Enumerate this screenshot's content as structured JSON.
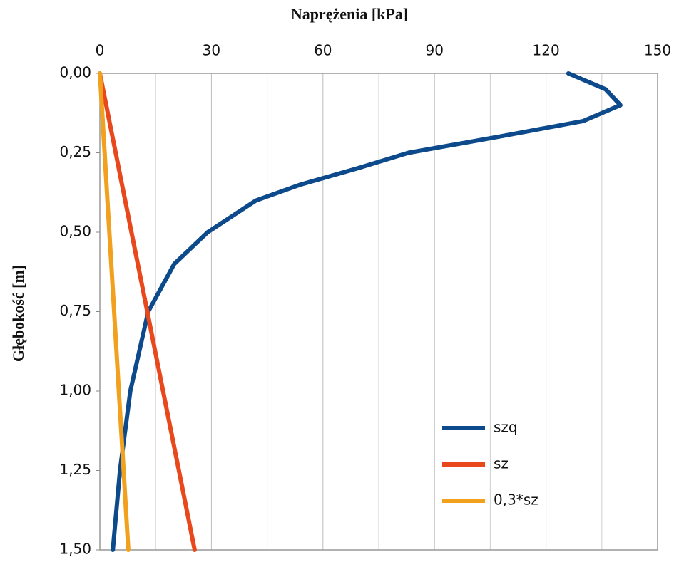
{
  "chart_data": {
    "type": "line",
    "title": "Naprężenia [kPa]",
    "y_label": "Głębokość [m]",
    "x": [
      0,
      0.05,
      0.1,
      0.15,
      0.2,
      0.25,
      0.3,
      0.35,
      0.4,
      0.5,
      0.6,
      0.75,
      1.0,
      1.25,
      1.5
    ],
    "series": [
      {
        "name": "szq",
        "color": "#0d4a8c",
        "values": [
          126,
          136,
          140,
          130,
          107,
          83,
          69,
          54,
          42,
          29,
          20,
          13,
          8.2,
          5.4,
          3.5
        ]
      },
      {
        "name": "sz",
        "color": "#e8481c",
        "values": [
          0,
          0.85,
          1.7,
          2.55,
          3.4,
          4.25,
          5.1,
          5.95,
          6.8,
          8.5,
          10.2,
          12.75,
          17,
          21.25,
          25.5
        ]
      },
      {
        "name": "0,3*sz",
        "color": "#f2a11e",
        "values": [
          0,
          0.26,
          0.51,
          0.77,
          1.02,
          1.28,
          1.53,
          1.79,
          2.04,
          2.55,
          3.06,
          3.83,
          5.1,
          6.38,
          7.65
        ]
      }
    ],
    "vlim": [
      0,
      150
    ],
    "vticks": [
      0,
      30,
      60,
      90,
      120,
      150
    ],
    "vminor": [
      15,
      45,
      75,
      105,
      135
    ],
    "dlim": [
      0,
      1.5
    ],
    "dticks": [
      {
        "value": 0,
        "label": "0,00"
      },
      {
        "value": 0.25,
        "label": "0,25"
      },
      {
        "value": 0.5,
        "label": "0,50"
      },
      {
        "value": 0.75,
        "label": "0,75"
      },
      {
        "value": 1.0,
        "label": "1,00"
      },
      {
        "value": 1.25,
        "label": "1,25"
      },
      {
        "value": 1.5,
        "label": "1,50"
      }
    ],
    "grid": true,
    "legend": "lower right"
  }
}
